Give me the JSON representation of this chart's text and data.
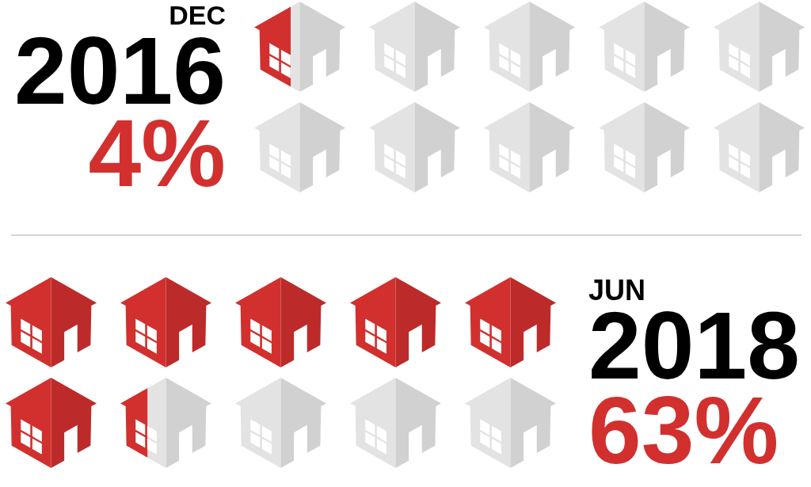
{
  "chart_data": [
    {
      "type": "other",
      "title": "DEC",
      "subtitle": "2016",
      "values": [
        4
      ],
      "value_labels": [
        "4%"
      ],
      "color": "#d1302e"
    },
    {
      "type": "other",
      "title": "JUN",
      "subtitle": "2018",
      "values": [
        63
      ],
      "value_labels": [
        "63%"
      ],
      "color": "#d1302e"
    }
  ]
}
